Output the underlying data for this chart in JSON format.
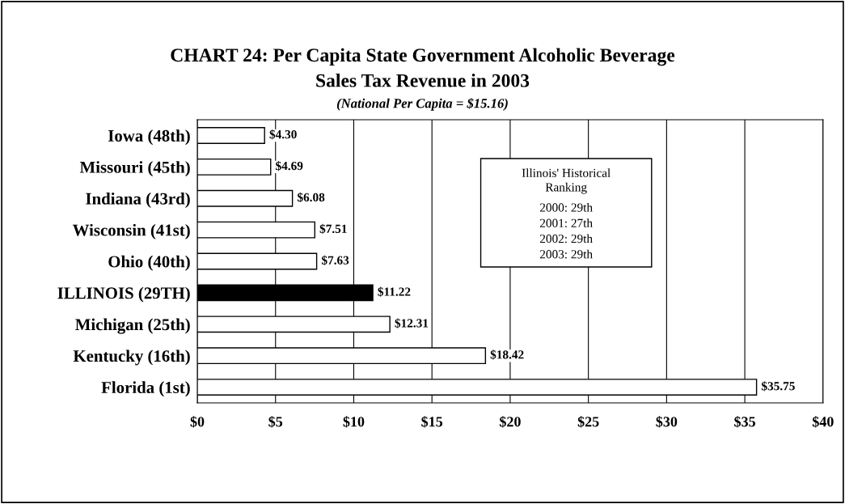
{
  "chart_data": {
    "type": "bar",
    "orientation": "horizontal",
    "title": "CHART 24: Per Capita State Government Alcoholic Beverage\nSales Tax Revenue in 2003",
    "subtitle": "(National Per Capita = $15.16)",
    "categories": [
      "Iowa (48th)",
      "Missouri (45th)",
      "Indiana (43rd)",
      "Wisconsin (41st)",
      "Ohio (40th)",
      "ILLINOIS (29TH)",
      "Michigan (25th)",
      "Kentucky (16th)",
      "Florida (1st)"
    ],
    "values": [
      4.3,
      4.69,
      6.08,
      7.51,
      7.63,
      11.22,
      12.31,
      18.42,
      35.75
    ],
    "value_labels": [
      "$4.30",
      "$4.69",
      "$6.08",
      "$7.51",
      "$7.63",
      "$11.22",
      "$12.31",
      "$18.42",
      "$35.75"
    ],
    "colors": [
      "#ffffff",
      "#ffffff",
      "#ffffff",
      "#ffffff",
      "#ffffff",
      "#000000",
      "#ffffff",
      "#ffffff",
      "#ffffff"
    ],
    "xlim": [
      0,
      40
    ],
    "xticks": [
      {
        "value": 0,
        "label": "$0"
      },
      {
        "value": 5,
        "label": "$5"
      },
      {
        "value": 10,
        "label": "$10"
      },
      {
        "value": 15,
        "label": "$15"
      },
      {
        "value": 20,
        "label": "$20"
      },
      {
        "value": 25,
        "label": "$25"
      },
      {
        "value": 30,
        "label": "$30"
      },
      {
        "value": 35,
        "label": "$35"
      },
      {
        "value": 40,
        "label": "$40"
      }
    ],
    "grid": "x",
    "legend": false,
    "annotations": [
      "Illinois' Historical\nRanking",
      "2000: 29th",
      "2001: 27th",
      "2002: 29th",
      "2003: 29th"
    ]
  }
}
